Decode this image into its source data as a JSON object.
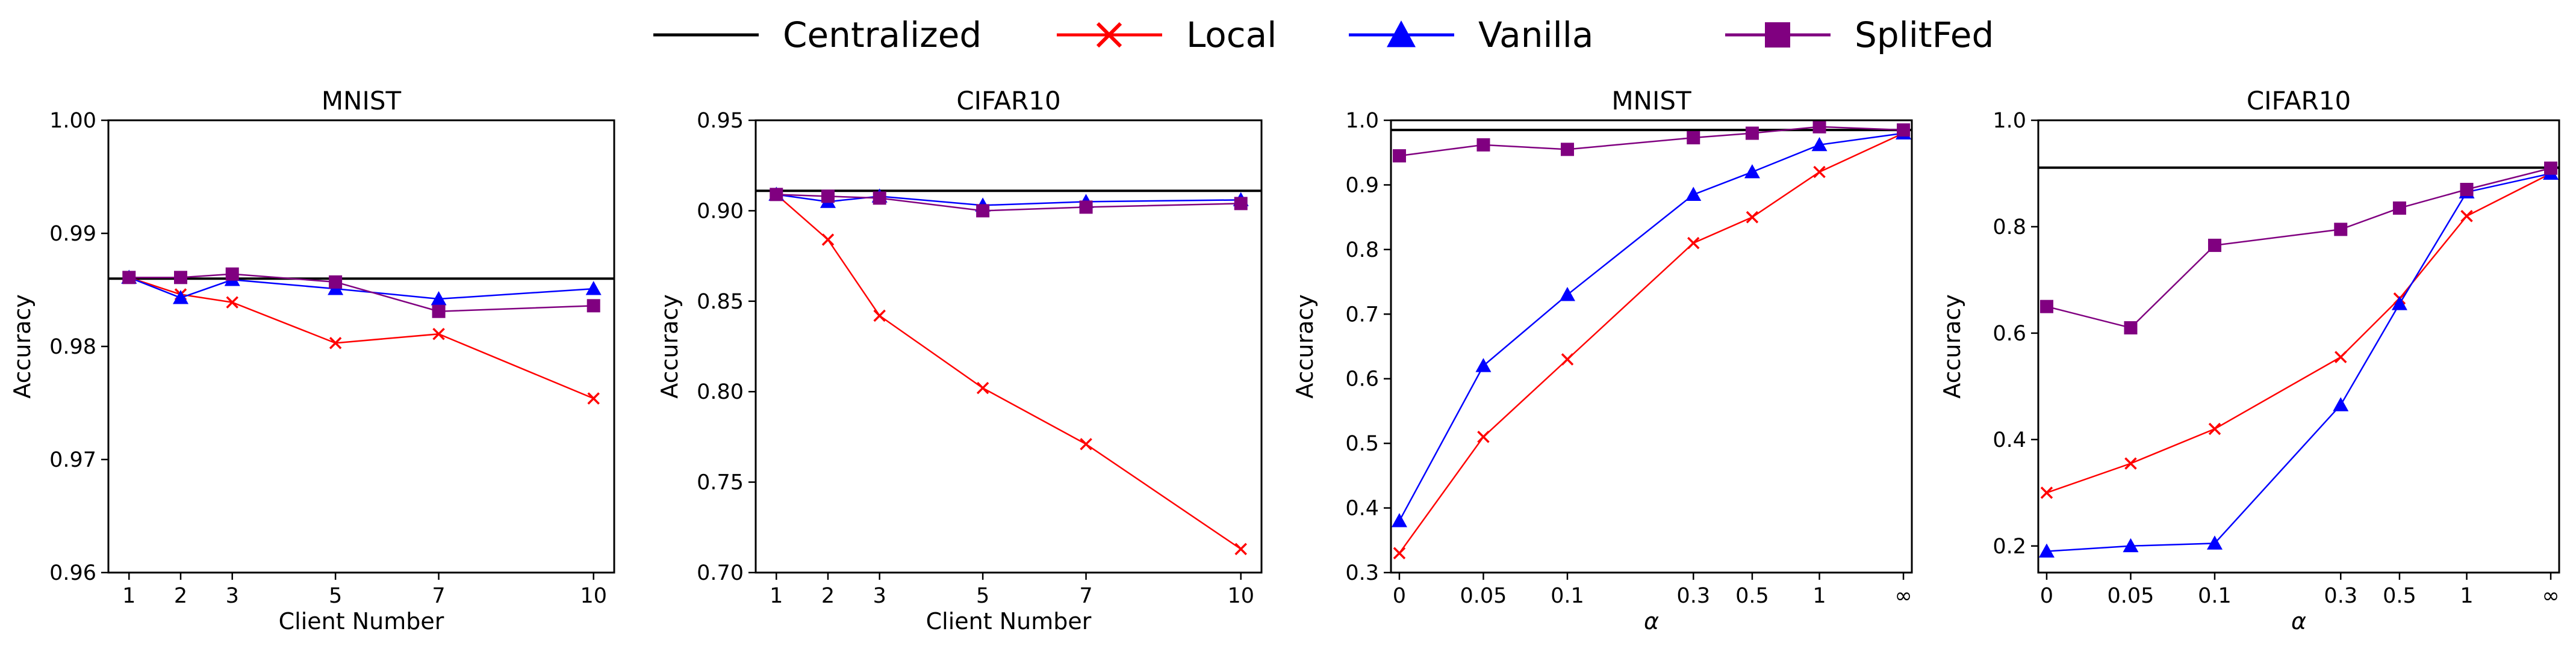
{
  "legend": [
    {
      "label": "Centralized",
      "color": "#000000",
      "marker": "none"
    },
    {
      "label": "Local",
      "color": "#ff0000",
      "marker": "x"
    },
    {
      "label": "Vanilla",
      "color": "#0000ff",
      "marker": "triangle"
    },
    {
      "label": "SplitFed",
      "color": "#800080",
      "marker": "square"
    }
  ],
  "chart_data": [
    {
      "type": "line",
      "title": "MNIST",
      "xlabel": "Client Number",
      "ylabel": "Accuracy",
      "xlim": [
        0.6,
        10.4
      ],
      "ylim": [
        0.96,
        1.0
      ],
      "xticks": [
        1,
        2,
        3,
        5,
        7,
        10
      ],
      "xtick_labels": [
        "1",
        "2",
        "3",
        "5",
        "7",
        "10"
      ],
      "yticks": [
        0.96,
        0.97,
        0.98,
        0.99,
        1.0
      ],
      "ytick_labels": [
        "0.96",
        "0.97",
        "0.98",
        "0.99",
        "1.00"
      ],
      "centralized": 0.986,
      "x": [
        1,
        2,
        3,
        5,
        7,
        10
      ],
      "series": [
        {
          "name": "Local",
          "values": [
            0.9861,
            0.9846,
            0.9839,
            0.9803,
            0.9811,
            0.9754
          ]
        },
        {
          "name": "Vanilla",
          "values": [
            0.9861,
            0.9843,
            0.9859,
            0.9851,
            0.9842,
            0.9851
          ]
        },
        {
          "name": "SplitFed",
          "values": [
            0.9861,
            0.9861,
            0.9864,
            0.9857,
            0.9831,
            0.9836
          ]
        }
      ]
    },
    {
      "type": "line",
      "title": "CIFAR10",
      "xlabel": "Client Number",
      "ylabel": "Accuracy",
      "xlim": [
        0.6,
        10.4
      ],
      "ylim": [
        0.7,
        0.95
      ],
      "xticks": [
        1,
        2,
        3,
        5,
        7,
        10
      ],
      "xtick_labels": [
        "1",
        "2",
        "3",
        "5",
        "7",
        "10"
      ],
      "yticks": [
        0.7,
        0.75,
        0.8,
        0.85,
        0.9,
        0.95
      ],
      "ytick_labels": [
        "0.70",
        "0.75",
        "0.80",
        "0.85",
        "0.90",
        "0.95"
      ],
      "centralized": 0.911,
      "x": [
        1,
        2,
        3,
        5,
        7,
        10
      ],
      "series": [
        {
          "name": "Local",
          "values": [
            0.909,
            0.884,
            0.842,
            0.802,
            0.771,
            0.713
          ]
        },
        {
          "name": "Vanilla",
          "values": [
            0.909,
            0.905,
            0.908,
            0.903,
            0.905,
            0.906
          ]
        },
        {
          "name": "SplitFed",
          "values": [
            0.909,
            0.908,
            0.907,
            0.9,
            0.902,
            0.904
          ]
        }
      ]
    },
    {
      "type": "line",
      "title": "MNIST",
      "xlabel": "α",
      "ylabel": "Accuracy",
      "xlim": [
        -0.1,
        6.1
      ],
      "ylim": [
        0.3,
        1.0
      ],
      "xticks": [
        0,
        1,
        2,
        3.5,
        4.2,
        5,
        6
      ],
      "xtick_labels": [
        "0",
        "0.05",
        "0.1",
        "0.3",
        "0.5",
        "1",
        "∞"
      ],
      "yticks": [
        0.3,
        0.4,
        0.5,
        0.6,
        0.7,
        0.8,
        0.9,
        1.0
      ],
      "ytick_labels": [
        "0.3",
        "0.4",
        "0.5",
        "0.6",
        "0.7",
        "0.8",
        "0.9",
        "1.0"
      ],
      "centralized": 0.985,
      "x": [
        0,
        1,
        2,
        3.5,
        4.2,
        5,
        6
      ],
      "series": [
        {
          "name": "Local",
          "values": [
            0.33,
            0.51,
            0.63,
            0.81,
            0.85,
            0.92,
            0.98
          ]
        },
        {
          "name": "Vanilla",
          "values": [
            0.38,
            0.62,
            0.73,
            0.885,
            0.92,
            0.962,
            0.98
          ]
        },
        {
          "name": "SplitFed",
          "values": [
            0.945,
            0.962,
            0.955,
            0.973,
            0.98,
            0.99,
            0.985
          ]
        }
      ]
    },
    {
      "type": "line",
      "title": "CIFAR10",
      "xlabel": "α",
      "ylabel": "Accuracy",
      "xlim": [
        -0.1,
        6.1
      ],
      "ylim": [
        0.15,
        1.0
      ],
      "xticks": [
        0,
        1,
        2,
        3.5,
        4.2,
        5,
        6
      ],
      "xtick_labels": [
        "0",
        "0.05",
        "0.1",
        "0.3",
        "0.5",
        "1",
        "∞"
      ],
      "yticks": [
        0.2,
        0.4,
        0.6,
        0.8,
        1.0
      ],
      "ytick_labels": [
        "0.2",
        "0.4",
        "0.6",
        "0.8",
        "1.0"
      ],
      "centralized": 0.911,
      "x": [
        0,
        1,
        2,
        3.5,
        4.2,
        5,
        6
      ],
      "series": [
        {
          "name": "Local",
          "values": [
            0.3,
            0.355,
            0.42,
            0.555,
            0.665,
            0.82,
            0.9
          ]
        },
        {
          "name": "Vanilla",
          "values": [
            0.19,
            0.2,
            0.205,
            0.465,
            0.655,
            0.865,
            0.9
          ]
        },
        {
          "name": "SplitFed",
          "values": [
            0.65,
            0.61,
            0.765,
            0.795,
            0.835,
            0.87,
            0.91
          ]
        }
      ]
    }
  ]
}
